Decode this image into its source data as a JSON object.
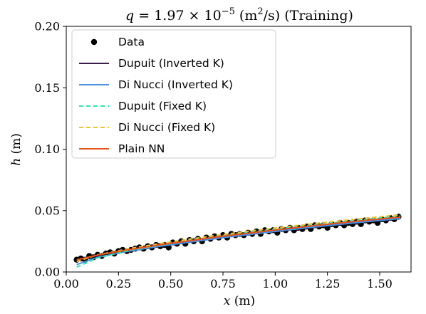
{
  "chart_data": {
    "type": "line",
    "title_parts": {
      "q": "q",
      "eq": " = 1.97 × 10",
      "exp": "−5",
      "unit_open": " (m",
      "unit_sq": "2",
      "unit_close": "/s) (Training)"
    },
    "xlabel": {
      "sym": "x",
      "unit": " (m)"
    },
    "ylabel": {
      "sym": "h",
      "unit": " (m)"
    },
    "xlim": [
      0.0,
      1.65
    ],
    "ylim": [
      0.0,
      0.2
    ],
    "xticks": [
      "0.00",
      "0.25",
      "0.50",
      "0.75",
      "1.00",
      "1.25",
      "1.50"
    ],
    "xtick_values": [
      0.0,
      0.25,
      0.5,
      0.75,
      1.0,
      1.25,
      1.5
    ],
    "yticks": [
      "0.00",
      "0.05",
      "0.10",
      "0.15",
      "0.20"
    ],
    "ytick_values": [
      0.0,
      0.05,
      0.1,
      0.15,
      0.2
    ],
    "grid": false,
    "legend_position": "top-left",
    "series": [
      {
        "name": "Data",
        "kind": "scatter",
        "color": "#000000",
        "x": [
          0.05,
          0.07,
          0.09,
          0.11,
          0.13,
          0.15,
          0.17,
          0.19,
          0.21,
          0.23,
          0.25,
          0.27,
          0.29,
          0.31,
          0.33,
          0.35,
          0.37,
          0.39,
          0.41,
          0.43,
          0.45,
          0.47,
          0.49,
          0.51,
          0.53,
          0.55,
          0.57,
          0.59,
          0.61,
          0.63,
          0.65,
          0.67,
          0.69,
          0.71,
          0.73,
          0.75,
          0.77,
          0.79,
          0.81,
          0.83,
          0.85,
          0.87,
          0.89,
          0.91,
          0.93,
          0.95,
          0.97,
          0.99,
          1.01,
          1.03,
          1.05,
          1.07,
          1.09,
          1.11,
          1.13,
          1.15,
          1.17,
          1.19,
          1.21,
          1.23,
          1.25,
          1.27,
          1.29,
          1.31,
          1.33,
          1.35,
          1.37,
          1.39,
          1.41,
          1.43,
          1.45,
          1.47,
          1.49,
          1.51,
          1.53,
          1.55,
          1.57,
          1.59
        ],
        "y": [
          0.01,
          0.011,
          0.01,
          0.013,
          0.012,
          0.014,
          0.013,
          0.015,
          0.016,
          0.015,
          0.017,
          0.018,
          0.017,
          0.018,
          0.019,
          0.02,
          0.019,
          0.021,
          0.02,
          0.022,
          0.021,
          0.022,
          0.02,
          0.024,
          0.023,
          0.025,
          0.023,
          0.026,
          0.025,
          0.027,
          0.025,
          0.028,
          0.027,
          0.029,
          0.028,
          0.03,
          0.028,
          0.031,
          0.03,
          0.031,
          0.03,
          0.032,
          0.031,
          0.033,
          0.031,
          0.034,
          0.033,
          0.034,
          0.032,
          0.035,
          0.034,
          0.036,
          0.034,
          0.036,
          0.035,
          0.037,
          0.035,
          0.038,
          0.037,
          0.038,
          0.036,
          0.039,
          0.038,
          0.04,
          0.038,
          0.04,
          0.039,
          0.041,
          0.039,
          0.042,
          0.041,
          0.042,
          0.04,
          0.043,
          0.042,
          0.044,
          0.043,
          0.045
        ]
      },
      {
        "name": "Dupuit (Inverted K)",
        "kind": "line",
        "dash": "solid",
        "color": "#3b1f4a",
        "x": [
          0.05,
          0.15,
          0.3,
          0.45,
          0.6,
          0.75,
          0.9,
          1.05,
          1.2,
          1.35,
          1.5,
          1.6
        ],
        "y": [
          0.0095,
          0.0135,
          0.018,
          0.022,
          0.0255,
          0.029,
          0.032,
          0.035,
          0.0378,
          0.0405,
          0.043,
          0.0445
        ]
      },
      {
        "name": "Di Nucci (Inverted K)",
        "kind": "line",
        "dash": "solid",
        "color": "#4a90e2",
        "x": [
          0.05,
          0.15,
          0.3,
          0.45,
          0.6,
          0.75,
          0.9,
          1.05,
          1.2,
          1.35,
          1.5,
          1.6
        ],
        "y": [
          0.006,
          0.012,
          0.017,
          0.021,
          0.0245,
          0.028,
          0.031,
          0.034,
          0.0368,
          0.0395,
          0.042,
          0.0435
        ]
      },
      {
        "name": "Dupuit (Fixed K)",
        "kind": "line",
        "dash": "dashed",
        "color": "#2ee6a8",
        "x": [
          0.05,
          0.15,
          0.3,
          0.45,
          0.6,
          0.75,
          0.9,
          1.05,
          1.2,
          1.35,
          1.5,
          1.6
        ],
        "y": [
          0.004,
          0.0115,
          0.0175,
          0.022,
          0.026,
          0.0295,
          0.0328,
          0.0358,
          0.0387,
          0.0414,
          0.044,
          0.0456
        ]
      },
      {
        "name": "Di Nucci (Fixed K)",
        "kind": "line",
        "dash": "dashed",
        "color": "#f2c230",
        "x": [
          0.05,
          0.15,
          0.3,
          0.45,
          0.6,
          0.75,
          0.9,
          1.05,
          1.2,
          1.35,
          1.5,
          1.6
        ],
        "y": [
          0.0085,
          0.014,
          0.019,
          0.0232,
          0.027,
          0.0305,
          0.0338,
          0.0368,
          0.0397,
          0.0424,
          0.045,
          0.0466
        ]
      },
      {
        "name": "Plain NN",
        "kind": "line",
        "dash": "solid",
        "color": "#e8541e",
        "x": [
          0.05,
          0.15,
          0.3,
          0.45,
          0.6,
          0.75,
          0.9,
          1.05,
          1.2,
          1.35,
          1.5,
          1.6
        ],
        "y": [
          0.01,
          0.0138,
          0.0182,
          0.0222,
          0.0257,
          0.0292,
          0.0322,
          0.0352,
          0.038,
          0.0407,
          0.0432,
          0.0447
        ]
      }
    ]
  }
}
